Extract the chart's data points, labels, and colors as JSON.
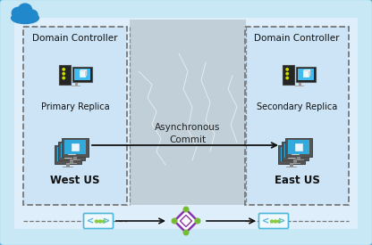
{
  "bg_outer": "#c8e8f5",
  "bg_outer_border": "#5ab4d6",
  "bg_inner": "#deeefa",
  "left_box_bg": "#cce4f5",
  "right_box_bg": "#cce4f5",
  "center_bg": "#c0cfd8",
  "dashed_border": "#777777",
  "left_label": "West US",
  "right_label": "East US",
  "center_label_line1": "Asynchronous",
  "center_label_line2": "Commit",
  "dc_label": "Domain Controller",
  "primary_label": "Primary Replica",
  "secondary_label": "Secondary Replica",
  "arrow_color": "#111111",
  "ellipsis_color": "#4ab8d8",
  "ellipsis_dot_color": "#88cc44",
  "diamond_purple": "#8833aa",
  "diamond_green": "#77bb33",
  "cloud_color": "#2288cc",
  "tower_dark": "#2a2a2a",
  "tower_dot": "#aacc00",
  "monitor_frame": "#888888",
  "monitor_screen": "#44bbee",
  "monitor_stand": "#aaaaaa",
  "replica_frame": "#777777",
  "replica_screen": "#33aadd",
  "fig_w": 4.16,
  "fig_h": 2.75,
  "dpi": 100
}
